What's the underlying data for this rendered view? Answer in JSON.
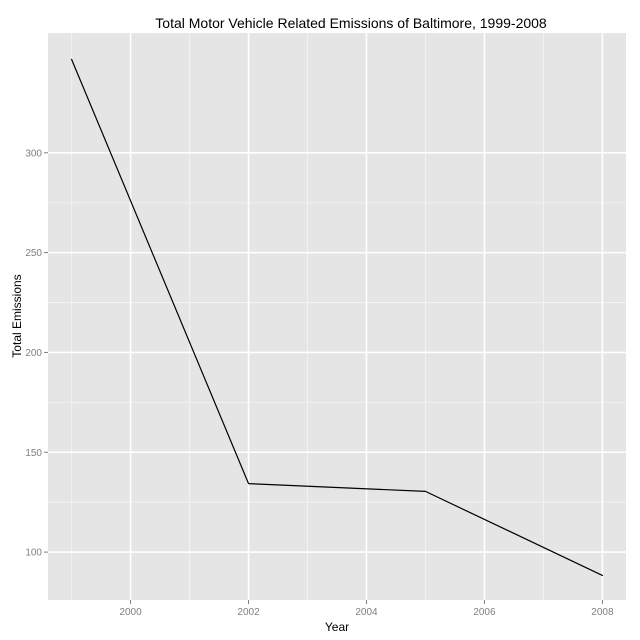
{
  "chart_data": {
    "type": "line",
    "title": "Total Motor Vehicle Related Emissions of Baltimore, 1999-2008",
    "xlabel": "Year",
    "ylabel": "Total Emissions",
    "x": [
      1999,
      2002,
      2005,
      2008
    ],
    "series": [
      {
        "values": [
          346.8,
          134.3,
          130.4,
          88.3
        ]
      }
    ],
    "x_ticks": [
      2000,
      2002,
      2004,
      2006,
      2008
    ],
    "x_tick_labels": [
      "2000",
      "2002",
      "2004",
      "2006",
      "2008"
    ],
    "y_ticks": [
      100,
      150,
      200,
      250,
      300
    ],
    "y_tick_labels": [
      "100",
      "150",
      "200",
      "250",
      "300"
    ],
    "xlim": [
      1998.6,
      2008.4
    ],
    "ylim": [
      76,
      360
    ],
    "grid": true,
    "legend": "none",
    "colors": {
      "panel_background": "#e5e5e5",
      "grid_major": "#ffffff",
      "grid_minor": "#f2f2f2",
      "line": "#000000",
      "tick_text": "#7f7f7f",
      "text": "#000000"
    }
  }
}
